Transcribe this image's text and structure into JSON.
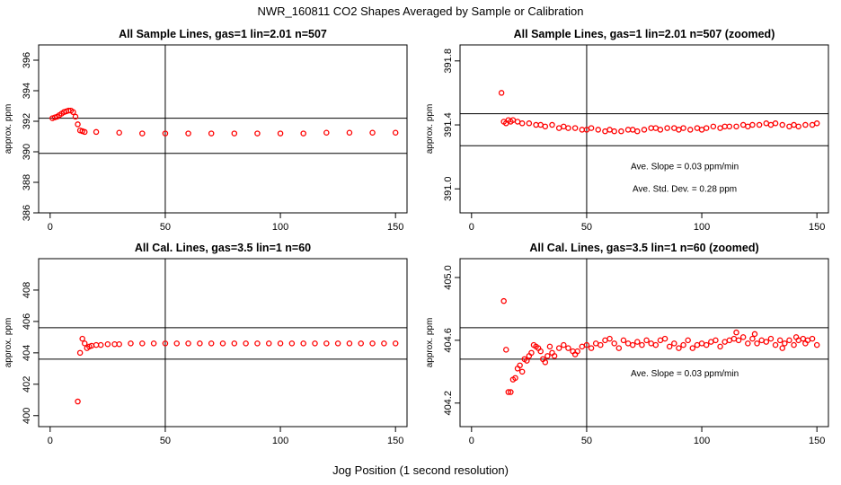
{
  "title": "NWR_160811  CO2 Shapes Averaged by Sample or Calibration",
  "xcaption": "Jog Position (1 second resolution)",
  "colors": {
    "points": "#ff0000",
    "axes": "#000000",
    "background": "#ffffff"
  },
  "chart_data": [
    {
      "type": "scatter",
      "title": "All Sample Lines, gas=1 lin=2.01 n=507",
      "ylabel": "approx. ppm",
      "xlim": [
        -5,
        155
      ],
      "ylim": [
        386,
        397
      ],
      "xticks": [
        0,
        50,
        100,
        150
      ],
      "yticks": [
        386,
        388,
        390,
        392,
        394,
        396
      ],
      "vline": 50,
      "hlines": [
        392.2,
        389.9
      ],
      "annotations": [],
      "points": [
        [
          1,
          392.2
        ],
        [
          2,
          392.25
        ],
        [
          3,
          392.3
        ],
        [
          4,
          392.4
        ],
        [
          5,
          392.5
        ],
        [
          6,
          392.6
        ],
        [
          7,
          392.65
        ],
        [
          8,
          392.7
        ],
        [
          9,
          392.7
        ],
        [
          10,
          392.6
        ],
        [
          11,
          392.3
        ],
        [
          12,
          391.8
        ],
        [
          13,
          391.4
        ],
        [
          14,
          391.35
        ],
        [
          15,
          391.3
        ],
        [
          20,
          391.3
        ],
        [
          30,
          391.25
        ],
        [
          40,
          391.2
        ],
        [
          50,
          391.2
        ],
        [
          60,
          391.2
        ],
        [
          70,
          391.2
        ],
        [
          80,
          391.2
        ],
        [
          90,
          391.2
        ],
        [
          100,
          391.2
        ],
        [
          110,
          391.2
        ],
        [
          120,
          391.25
        ],
        [
          130,
          391.25
        ],
        [
          140,
          391.25
        ],
        [
          150,
          391.25
        ]
      ]
    },
    {
      "type": "scatter",
      "title": "All Sample Lines, gas=1 lin=2.01 n=507 (zoomed)",
      "ylabel": "approx. ppm",
      "xlim": [
        -5,
        155
      ],
      "ylim": [
        390.85,
        391.9
      ],
      "xticks": [
        0,
        50,
        100,
        150
      ],
      "yticks": [
        391.0,
        391.4,
        391.8
      ],
      "vline": 50,
      "hlines": [
        391.47,
        391.27
      ],
      "annotations": [
        "Ave. Slope =  0.03  ppm/min",
        "Ave. Std. Dev. =  0.28  ppm"
      ],
      "points": [
        [
          13,
          391.6
        ],
        [
          14,
          391.42
        ],
        [
          15,
          391.41
        ],
        [
          16,
          391.43
        ],
        [
          17,
          391.42
        ],
        [
          18,
          391.43
        ],
        [
          20,
          391.42
        ],
        [
          22,
          391.41
        ],
        [
          25,
          391.41
        ],
        [
          28,
          391.4
        ],
        [
          30,
          391.4
        ],
        [
          32,
          391.39
        ],
        [
          35,
          391.4
        ],
        [
          38,
          391.38
        ],
        [
          40,
          391.39
        ],
        [
          42,
          391.38
        ],
        [
          45,
          391.38
        ],
        [
          48,
          391.37
        ],
        [
          50,
          391.37
        ],
        [
          52,
          391.38
        ],
        [
          55,
          391.37
        ],
        [
          58,
          391.36
        ],
        [
          60,
          391.37
        ],
        [
          62,
          391.36
        ],
        [
          65,
          391.36
        ],
        [
          68,
          391.37
        ],
        [
          70,
          391.37
        ],
        [
          72,
          391.36
        ],
        [
          75,
          391.37
        ],
        [
          78,
          391.38
        ],
        [
          80,
          391.38
        ],
        [
          82,
          391.37
        ],
        [
          85,
          391.38
        ],
        [
          88,
          391.38
        ],
        [
          90,
          391.37
        ],
        [
          92,
          391.38
        ],
        [
          95,
          391.37
        ],
        [
          98,
          391.38
        ],
        [
          100,
          391.37
        ],
        [
          102,
          391.38
        ],
        [
          105,
          391.39
        ],
        [
          108,
          391.38
        ],
        [
          110,
          391.39
        ],
        [
          112,
          391.39
        ],
        [
          115,
          391.39
        ],
        [
          118,
          391.4
        ],
        [
          120,
          391.39
        ],
        [
          122,
          391.4
        ],
        [
          125,
          391.4
        ],
        [
          128,
          391.41
        ],
        [
          130,
          391.4
        ],
        [
          132,
          391.41
        ],
        [
          135,
          391.4
        ],
        [
          138,
          391.39
        ],
        [
          140,
          391.4
        ],
        [
          142,
          391.39
        ],
        [
          145,
          391.4
        ],
        [
          148,
          391.4
        ],
        [
          150,
          391.41
        ]
      ]
    },
    {
      "type": "scatter",
      "title": "All Cal. Lines, gas=3.5 lin=1 n=60",
      "ylabel": "approx. ppm",
      "xlim": [
        -5,
        155
      ],
      "ylim": [
        399.3,
        410
      ],
      "xticks": [
        0,
        50,
        100,
        150
      ],
      "yticks": [
        400,
        402,
        404,
        406,
        408
      ],
      "vline": 50,
      "hlines": [
        405.6,
        403.6
      ],
      "annotations": [],
      "points": [
        [
          12,
          400.9
        ],
        [
          13,
          404.0
        ],
        [
          14,
          404.9
        ],
        [
          15,
          404.6
        ],
        [
          16,
          404.3
        ],
        [
          17,
          404.4
        ],
        [
          18,
          404.45
        ],
        [
          20,
          404.5
        ],
        [
          22,
          404.5
        ],
        [
          25,
          404.55
        ],
        [
          28,
          404.55
        ],
        [
          30,
          404.55
        ],
        [
          35,
          404.6
        ],
        [
          40,
          404.6
        ],
        [
          45,
          404.6
        ],
        [
          50,
          404.6
        ],
        [
          55,
          404.6
        ],
        [
          60,
          404.6
        ],
        [
          65,
          404.6
        ],
        [
          70,
          404.6
        ],
        [
          75,
          404.6
        ],
        [
          80,
          404.6
        ],
        [
          85,
          404.6
        ],
        [
          90,
          404.6
        ],
        [
          95,
          404.6
        ],
        [
          100,
          404.6
        ],
        [
          105,
          404.6
        ],
        [
          110,
          404.6
        ],
        [
          115,
          404.6
        ],
        [
          120,
          404.6
        ],
        [
          125,
          404.6
        ],
        [
          130,
          404.6
        ],
        [
          135,
          404.6
        ],
        [
          140,
          404.6
        ],
        [
          145,
          404.6
        ],
        [
          150,
          404.6
        ]
      ]
    },
    {
      "type": "scatter",
      "title": "All Cal. Lines, gas=3.5 lin=1 n=60 (zoomed)",
      "ylabel": "approx. ppm",
      "xlim": [
        -5,
        155
      ],
      "ylim": [
        404.05,
        405.12
      ],
      "xticks": [
        0,
        50,
        100,
        150
      ],
      "yticks": [
        404.2,
        404.6,
        405.0
      ],
      "vline": 50,
      "hlines": [
        404.68,
        404.48
      ],
      "annotations": [
        "Ave. Slope =  0.03  ppm/min"
      ],
      "points": [
        [
          14,
          404.85
        ],
        [
          15,
          404.54
        ],
        [
          16,
          404.27
        ],
        [
          17,
          404.27
        ],
        [
          18,
          404.35
        ],
        [
          19,
          404.36
        ],
        [
          20,
          404.42
        ],
        [
          21,
          404.44
        ],
        [
          22,
          404.4
        ],
        [
          23,
          404.48
        ],
        [
          24,
          404.47
        ],
        [
          25,
          404.5
        ],
        [
          26,
          404.52
        ],
        [
          27,
          404.57
        ],
        [
          28,
          404.56
        ],
        [
          29,
          404.55
        ],
        [
          30,
          404.53
        ],
        [
          31,
          404.48
        ],
        [
          32,
          404.46
        ],
        [
          33,
          404.5
        ],
        [
          34,
          404.56
        ],
        [
          35,
          404.52
        ],
        [
          36,
          404.5
        ],
        [
          38,
          404.55
        ],
        [
          40,
          404.57
        ],
        [
          42,
          404.55
        ],
        [
          44,
          404.53
        ],
        [
          45,
          404.51
        ],
        [
          46,
          404.53
        ],
        [
          48,
          404.56
        ],
        [
          50,
          404.57
        ],
        [
          52,
          404.55
        ],
        [
          54,
          404.58
        ],
        [
          56,
          404.57
        ],
        [
          58,
          404.6
        ],
        [
          60,
          404.61
        ],
        [
          62,
          404.58
        ],
        [
          64,
          404.55
        ],
        [
          66,
          404.6
        ],
        [
          68,
          404.58
        ],
        [
          70,
          404.57
        ],
        [
          72,
          404.59
        ],
        [
          74,
          404.57
        ],
        [
          76,
          404.6
        ],
        [
          78,
          404.58
        ],
        [
          80,
          404.57
        ],
        [
          82,
          404.6
        ],
        [
          84,
          404.61
        ],
        [
          86,
          404.56
        ],
        [
          88,
          404.58
        ],
        [
          90,
          404.55
        ],
        [
          92,
          404.57
        ],
        [
          94,
          404.6
        ],
        [
          96,
          404.55
        ],
        [
          98,
          404.57
        ],
        [
          100,
          404.58
        ],
        [
          102,
          404.57
        ],
        [
          104,
          404.59
        ],
        [
          106,
          404.6
        ],
        [
          108,
          404.56
        ],
        [
          110,
          404.59
        ],
        [
          112,
          404.6
        ],
        [
          114,
          404.61
        ],
        [
          115,
          404.65
        ],
        [
          116,
          404.6
        ],
        [
          118,
          404.62
        ],
        [
          120,
          404.58
        ],
        [
          122,
          404.61
        ],
        [
          123,
          404.64
        ],
        [
          124,
          404.58
        ],
        [
          126,
          404.6
        ],
        [
          128,
          404.59
        ],
        [
          130,
          404.61
        ],
        [
          132,
          404.57
        ],
        [
          134,
          404.6
        ],
        [
          135,
          404.55
        ],
        [
          136,
          404.58
        ],
        [
          138,
          404.6
        ],
        [
          140,
          404.57
        ],
        [
          141,
          404.62
        ],
        [
          142,
          404.6
        ],
        [
          144,
          404.61
        ],
        [
          145,
          404.58
        ],
        [
          146,
          404.6
        ],
        [
          148,
          404.61
        ],
        [
          150,
          404.57
        ]
      ]
    }
  ]
}
